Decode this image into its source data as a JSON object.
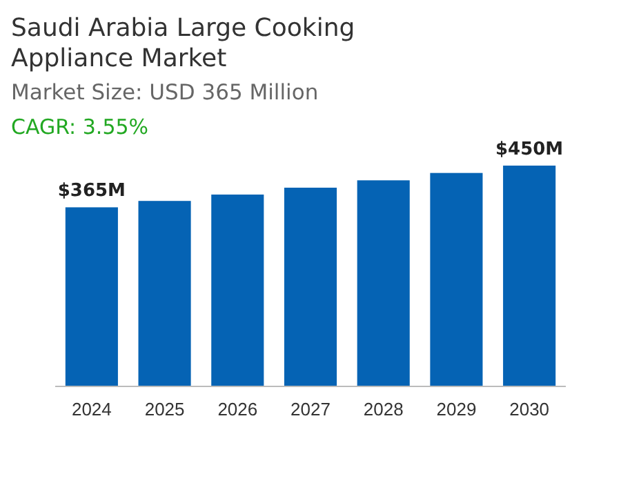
{
  "chart_data": {
    "type": "bar",
    "title": "Saudi Arabia Large Cooking Appliance Market",
    "subtitle": "Market Size: USD 365 Million",
    "annotations": [
      "CAGR: 3.55%"
    ],
    "categories": [
      "2024",
      "2025",
      "2026",
      "2027",
      "2028",
      "2029",
      "2030"
    ],
    "values": [
      365,
      378,
      391,
      405,
      420,
      435,
      450
    ],
    "value_labels": [
      "$365M",
      null,
      null,
      null,
      null,
      null,
      "$450M"
    ],
    "color": "#0563b4"
  }
}
